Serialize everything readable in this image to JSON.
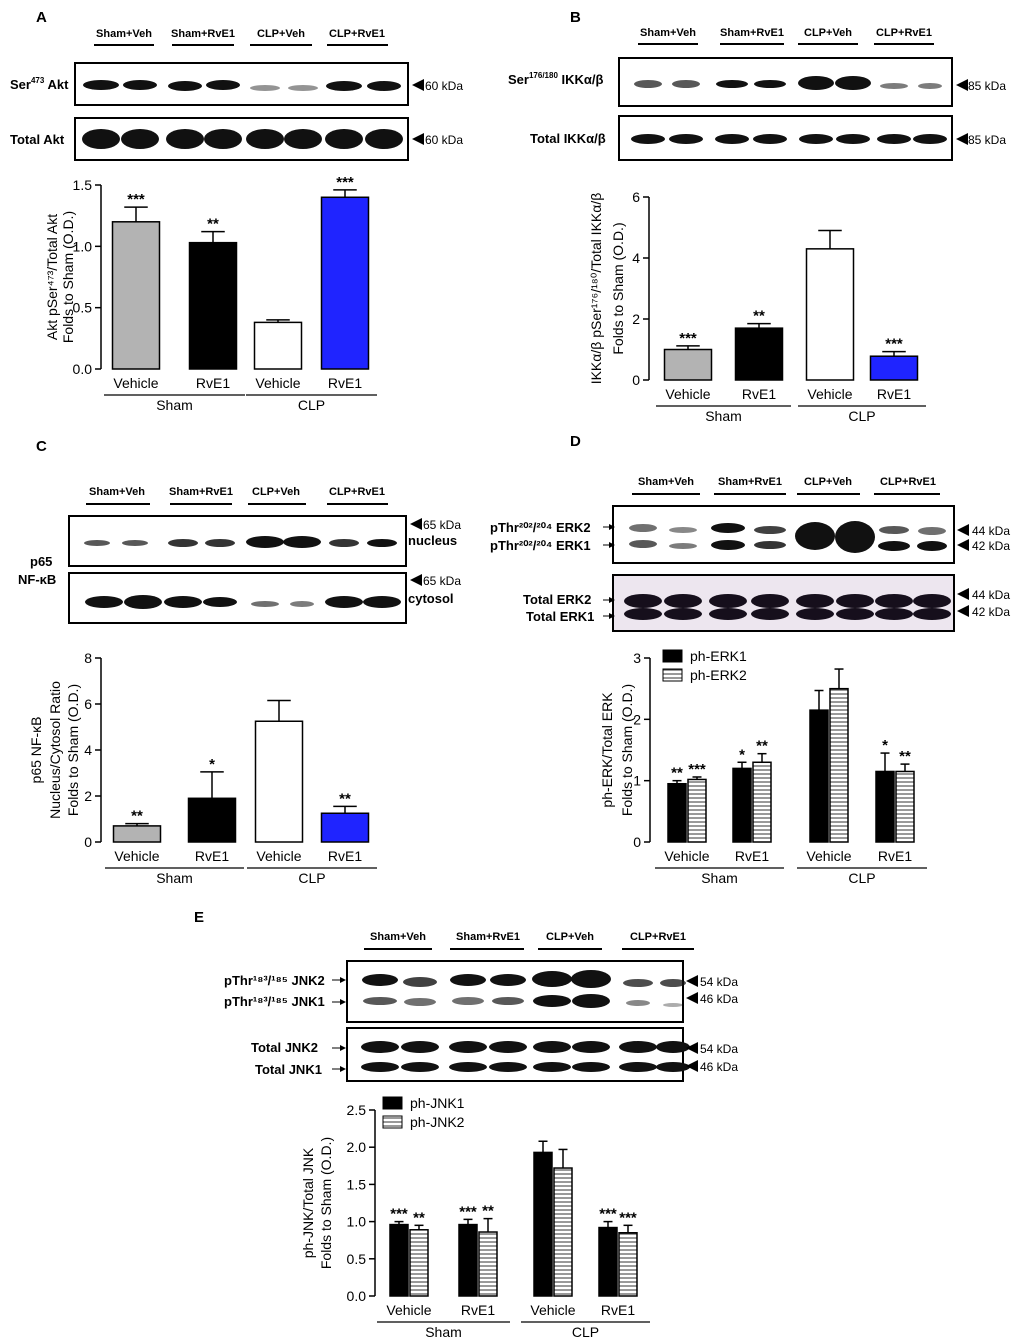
{
  "group_labels": [
    "Sham+Veh",
    "Sham+RvE1",
    "CLP+Veh",
    "CLP+RvE1"
  ],
  "colors": {
    "grey": "#b3b3b3",
    "black": "#000000",
    "white": "#ffffff",
    "blue": "#1f24ff"
  },
  "panels": {
    "A": {
      "letter": "A",
      "blots": [
        {
          "label_main": "Ser",
          "label_sup": "473",
          "label_tail": " Akt",
          "kda": "60 kDa"
        },
        {
          "label_main": "Total Akt",
          "kda": "60 kDa"
        }
      ]
    },
    "B": {
      "letter": "B",
      "blots": [
        {
          "label_main": "Ser",
          "label_sup": "176/180",
          "label_tail": " IKKα/β",
          "kda": "85 kDa"
        },
        {
          "label_main": "Total IKKα/β",
          "kda": "85 kDa"
        }
      ]
    },
    "C": {
      "letter": "C",
      "row_label_1": "p65",
      "row_label_2": "NF-κB",
      "blots": [
        {
          "side": "nucleus",
          "kda": "65 kDa"
        },
        {
          "side": "cytosol",
          "kda": "65 kDa"
        }
      ]
    },
    "D": {
      "letter": "D",
      "blots": [
        {
          "lines": [
            "pThr²⁰²/²⁰⁴ ERK2",
            "pThr²⁰²/²⁰⁴ ERK1"
          ],
          "kda": [
            "44 kDa",
            "42 kDa"
          ]
        },
        {
          "lines": [
            "Total ERK2",
            "Total ERK1"
          ],
          "kda": [
            "44 kDa",
            "42 kDa"
          ]
        }
      ]
    },
    "E": {
      "letter": "E",
      "blots": [
        {
          "lines": [
            "pThr¹⁸³/¹⁸⁵ JNK2",
            "pThr¹⁸³/¹⁸⁵ JNK1"
          ],
          "kda": [
            "54 kDa",
            "46 kDa"
          ]
        },
        {
          "lines": [
            "Total JNK2",
            "Total JNK1"
          ],
          "kda": [
            "54 kDa",
            "46 kDa"
          ]
        }
      ]
    }
  },
  "chart_data": [
    {
      "panel": "A",
      "type": "bar",
      "categories": [
        "Vehicle",
        "RvE1",
        "Vehicle",
        "RvE1"
      ],
      "groups": [
        "Sham",
        "CLP"
      ],
      "values": [
        1.2,
        1.03,
        0.38,
        1.4
      ],
      "errors": [
        0.12,
        0.09,
        0.02,
        0.06
      ],
      "significance": [
        "***",
        "**",
        "",
        "***"
      ],
      "bar_colors": [
        "grey",
        "black",
        "white",
        "blue"
      ],
      "ylabel_line1": "Akt pSer⁴⁷³/Total Akt",
      "ylabel_line2": "Folds to Sham (O.D.)",
      "ylim": [
        0,
        1.5
      ],
      "yticks": [
        "0.0",
        "0.5",
        "1.0",
        "1.5"
      ]
    },
    {
      "panel": "B",
      "type": "bar",
      "categories": [
        "Vehicle",
        "RvE1",
        "Vehicle",
        "RvE1"
      ],
      "groups": [
        "Sham",
        "CLP"
      ],
      "values": [
        1.0,
        1.7,
        4.3,
        0.78
      ],
      "errors": [
        0.12,
        0.15,
        0.6,
        0.15
      ],
      "significance": [
        "***",
        "**",
        "",
        "***"
      ],
      "bar_colors": [
        "grey",
        "black",
        "white",
        "blue"
      ],
      "ylabel_line1": "IKKα/β pSer¹⁷⁶/¹⁸⁰/Total IKKα/β",
      "ylabel_line2": "Folds to Sham (O.D.)",
      "ylim": [
        0,
        6
      ],
      "yticks": [
        "0",
        "2",
        "4",
        "6"
      ]
    },
    {
      "panel": "C",
      "type": "bar",
      "categories": [
        "Vehicle",
        "RvE1",
        "Vehicle",
        "RvE1"
      ],
      "groups": [
        "Sham",
        "CLP"
      ],
      "values": [
        0.7,
        1.9,
        5.25,
        1.25
      ],
      "errors": [
        0.1,
        1.15,
        0.9,
        0.3
      ],
      "significance": [
        "**",
        "*",
        "",
        "**"
      ],
      "bar_colors": [
        "grey",
        "black",
        "white",
        "blue"
      ],
      "ylabel_line1": "p65 NF-κB",
      "ylabel_line2": "Nucleus/Cytosol Ratio",
      "ylabel_line3": "Folds to Sham (O.D.)",
      "ylim": [
        0,
        8
      ],
      "yticks": [
        "0",
        "2",
        "4",
        "6",
        "8"
      ]
    },
    {
      "panel": "D",
      "type": "bar",
      "categories": [
        "Vehicle",
        "RvE1",
        "Vehicle",
        "RvE1"
      ],
      "groups": [
        "Sham",
        "CLP"
      ],
      "series": [
        {
          "name": "ph-ERK1",
          "values": [
            0.95,
            1.2,
            2.15,
            1.15
          ],
          "errors": [
            0.05,
            0.1,
            0.32,
            0.3
          ],
          "significance": [
            "**",
            "*",
            "",
            "*"
          ]
        },
        {
          "name": "ph-ERK2",
          "values": [
            1.02,
            1.3,
            2.5,
            1.15
          ],
          "errors": [
            0.04,
            0.14,
            0.32,
            0.12
          ],
          "significance": [
            "***",
            "**",
            "",
            "**"
          ]
        }
      ],
      "ylabel_line1": "ph-ERK/Total ERK",
      "ylabel_line2": "Folds to Sham (O.D.)",
      "ylim": [
        0,
        3
      ],
      "yticks": [
        "0",
        "1",
        "2",
        "3"
      ]
    },
    {
      "panel": "E",
      "type": "bar",
      "categories": [
        "Vehicle",
        "RvE1",
        "Vehicle",
        "RvE1"
      ],
      "groups": [
        "Sham",
        "CLP"
      ],
      "series": [
        {
          "name": "ph-JNK1",
          "values": [
            0.96,
            0.96,
            1.93,
            0.92
          ],
          "errors": [
            0.04,
            0.07,
            0.15,
            0.08
          ],
          "significance": [
            "***",
            "***",
            "",
            "***"
          ]
        },
        {
          "name": "ph-JNK2",
          "values": [
            0.89,
            0.86,
            1.72,
            0.85
          ],
          "errors": [
            0.06,
            0.18,
            0.25,
            0.1
          ],
          "significance": [
            "**",
            "**",
            "",
            "***"
          ]
        }
      ],
      "ylabel_line1": "ph-JNK/Total JNK",
      "ylabel_line2": "Folds to Sham (O.D.)",
      "ylim": [
        0,
        2.5
      ],
      "yticks": [
        "0.0",
        "0.5",
        "1.0",
        "1.5",
        "2.0",
        "2.5"
      ]
    }
  ]
}
